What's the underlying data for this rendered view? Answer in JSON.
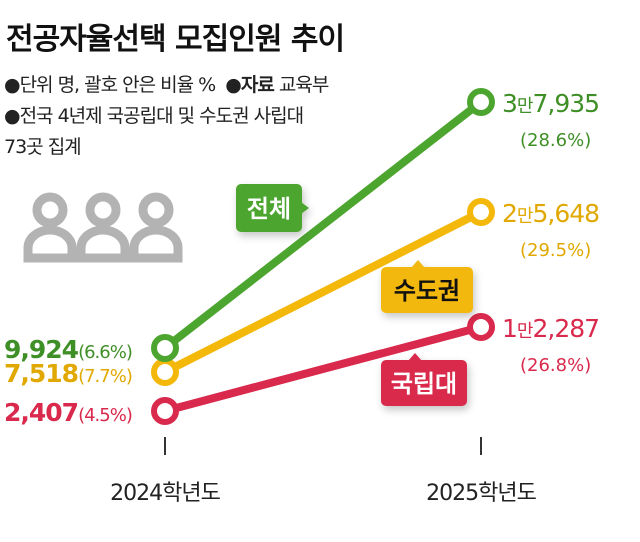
{
  "title": "전공자율선택 모집인원 추이",
  "notes": {
    "unit": "●단위 명, 괄호 안은 비율 %",
    "source_label": "●자료",
    "source_value": " 교육부",
    "scope_line1": "●전국 4년제 국공립대 및 수도권 사립대",
    "scope_line2": "73곳 집계"
  },
  "icon": "people-group-icon",
  "chart_data": {
    "type": "line",
    "title": "전공자율선택 모집인원 추이",
    "categories": [
      "2024학년도",
      "2025학년도"
    ],
    "series": [
      {
        "name": "전체",
        "color": "#4ca52f",
        "text_color": "#3f8f27",
        "label_text_color": "#ffffff",
        "values": [
          9924,
          37935
        ],
        "percent": [
          6.6,
          28.6
        ],
        "labels": [
          [
            "9,924",
            "(6.6%)"
          ],
          [
            "3만7,935",
            "(28.6%)"
          ]
        ]
      },
      {
        "name": "수도권",
        "color": "#f3b80a",
        "text_color": "#e0a800",
        "label_text_color": "#111111",
        "values": [
          7518,
          25648
        ],
        "percent": [
          7.7,
          29.5
        ],
        "labels": [
          [
            "7,518",
            "(7.7%)"
          ],
          [
            "2만5,648",
            "(29.5%)"
          ]
        ]
      },
      {
        "name": "국립대",
        "color": "#d9294c",
        "text_color": "#d9294c",
        "label_text_color": "#ffffff",
        "values": [
          2407,
          12287
        ],
        "percent": [
          4.5,
          26.8
        ],
        "labels": [
          [
            "2,407",
            "(4.5%)"
          ],
          [
            "1만2,287",
            "(26.8%)"
          ]
        ]
      }
    ]
  }
}
